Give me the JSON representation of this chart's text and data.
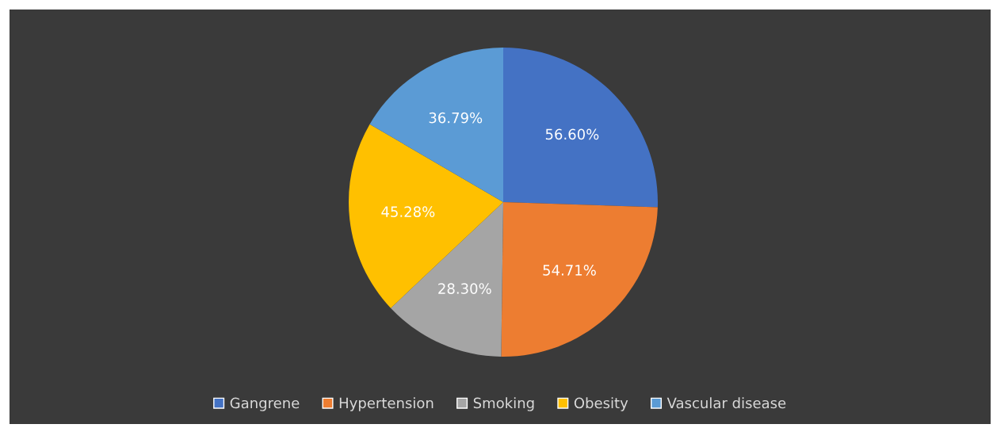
{
  "chart_data": {
    "type": "pie",
    "categories": [
      "Gangrene",
      "Hypertension",
      "Smoking",
      "Obesity",
      "Vascular disease"
    ],
    "values": [
      56.6,
      54.71,
      28.3,
      45.28,
      36.79
    ],
    "value_labels": [
      "56.60%",
      "54.71%",
      "28.30%",
      "45.28%",
      "36.79%"
    ],
    "colors": [
      "#4472c4",
      "#ed7d31",
      "#a5a5a5",
      "#ffc000",
      "#5b9bd5"
    ],
    "legend": "bottom"
  }
}
